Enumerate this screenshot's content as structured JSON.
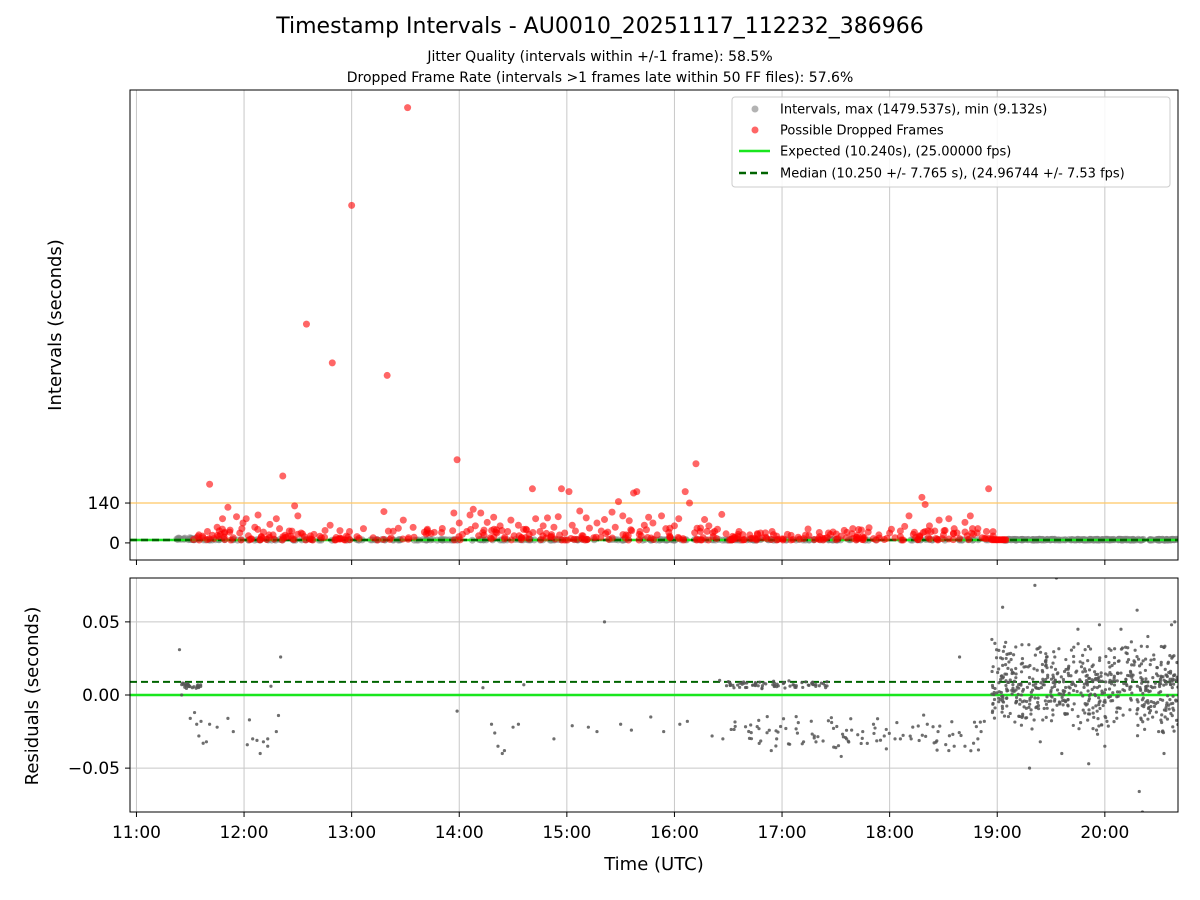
{
  "title": "Timestamp Intervals - AU0010_20251117_112232_386966",
  "subtitle_1": "Jitter Quality (intervals within +/-1 frame): 58.5%",
  "subtitle_2": "Dropped Frame Rate (intervals >1 frames late within 50 FF files): 57.6%",
  "colors": {
    "expected": "#19e61e",
    "median": "#006400",
    "dropped": "#ff0000",
    "intervals": "#808080",
    "threshold": "#ffc864",
    "residual": "#555555",
    "grid": "#c8c8c8"
  },
  "chart_data": [
    {
      "type": "scatter",
      "panel": "top",
      "ylabel": "Intervals (seconds)",
      "x_axis": "Time (UTC), hours",
      "xlim": [
        10.94,
        20.68
      ],
      "ylim": [
        -60,
        1590
      ],
      "yticks": [
        0,
        140
      ],
      "ytick_labels": [
        "0",
        "140"
      ],
      "xticks": [
        11,
        12,
        13,
        14,
        15,
        16,
        17,
        18,
        19,
        20
      ],
      "grid": "x",
      "threshold_line": 140,
      "expected": 10.24,
      "median": 10.25,
      "legend_position": "top-right",
      "legend": [
        "Intervals, max (1479.537s), min (9.132s)",
        "Possible Dropped Frames",
        "Expected (10.240s), (25.00000 fps)",
        "Median (10.250 +/- 7.765 s), (24.96744 +/- 7.53 fps)"
      ],
      "dropped_frames": [
        [
          11.53,
          12
        ],
        [
          11.58,
          28
        ],
        [
          11.62,
          18
        ],
        [
          11.66,
          40
        ],
        [
          11.68,
          206
        ],
        [
          11.72,
          15
        ],
        [
          11.75,
          55
        ],
        [
          11.78,
          30
        ],
        [
          11.8,
          85
        ],
        [
          11.82,
          12
        ],
        [
          11.85,
          125
        ],
        [
          11.87,
          45
        ],
        [
          11.9,
          18
        ],
        [
          11.93,
          92
        ],
        [
          11.96,
          35
        ],
        [
          11.99,
          70
        ],
        [
          12.02,
          85
        ],
        [
          12.04,
          25
        ],
        [
          12.07,
          14
        ],
        [
          12.1,
          55
        ],
        [
          12.13,
          98
        ],
        [
          12.16,
          20
        ],
        [
          12.18,
          38
        ],
        [
          12.21,
          12
        ],
        [
          12.24,
          65
        ],
        [
          12.27,
          28
        ],
        [
          12.3,
          85
        ],
        [
          12.33,
          50
        ],
        [
          12.36,
          235
        ],
        [
          12.39,
          20
        ],
        [
          12.42,
          42
        ],
        [
          12.45,
          15
        ],
        [
          12.47,
          130
        ],
        [
          12.5,
          95
        ],
        [
          12.53,
          35
        ],
        [
          12.56,
          22
        ],
        [
          12.58,
          768
        ],
        [
          12.62,
          12
        ],
        [
          12.65,
          30
        ],
        [
          12.72,
          18
        ],
        [
          12.8,
          62
        ],
        [
          12.82,
          632
        ],
        [
          12.9,
          15
        ],
        [
          12.98,
          40
        ],
        [
          13.0,
          1185
        ],
        [
          13.05,
          22
        ],
        [
          13.2,
          18
        ],
        [
          13.3,
          110
        ],
        [
          13.33,
          588
        ],
        [
          13.48,
          80
        ],
        [
          13.52,
          1528
        ],
        [
          13.58,
          20
        ],
        [
          13.95,
          105
        ],
        [
          13.98,
          292
        ],
        [
          14.0,
          70
        ],
        [
          14.03,
          30
        ],
        [
          14.07,
          40
        ],
        [
          14.1,
          98
        ],
        [
          14.13,
          118
        ],
        [
          14.15,
          60
        ],
        [
          14.18,
          25
        ],
        [
          14.2,
          105
        ],
        [
          14.23,
          45
        ],
        [
          14.26,
          72
        ],
        [
          14.29,
          18
        ],
        [
          14.32,
          90
        ],
        [
          14.35,
          35
        ],
        [
          14.38,
          60
        ],
        [
          14.42,
          14
        ],
        [
          14.45,
          40
        ],
        [
          14.48,
          80
        ],
        [
          14.51,
          25
        ],
        [
          14.55,
          62
        ],
        [
          14.58,
          18
        ],
        [
          14.62,
          48
        ],
        [
          14.65,
          30
        ],
        [
          14.68,
          190
        ],
        [
          14.71,
          85
        ],
        [
          14.75,
          40
        ],
        [
          14.78,
          60
        ],
        [
          14.82,
          88
        ],
        [
          14.85,
          20
        ],
        [
          14.88,
          55
        ],
        [
          14.92,
          92
        ],
        [
          14.95,
          190
        ],
        [
          14.98,
          35
        ],
        [
          15.02,
          180
        ],
        [
          15.05,
          62
        ],
        [
          15.08,
          42
        ],
        [
          15.12,
          112
        ],
        [
          15.15,
          25
        ],
        [
          15.18,
          88
        ],
        [
          15.21,
          52
        ],
        [
          15.25,
          18
        ],
        [
          15.28,
          70
        ],
        [
          15.32,
          42
        ],
        [
          15.35,
          82
        ],
        [
          15.38,
          38
        ],
        [
          15.42,
          108
        ],
        [
          15.45,
          55
        ],
        [
          15.48,
          145
        ],
        [
          15.52,
          95
        ],
        [
          15.55,
          28
        ],
        [
          15.58,
          78
        ],
        [
          15.62,
          175
        ],
        [
          15.65,
          180
        ],
        [
          15.68,
          40
        ],
        [
          15.72,
          62
        ],
        [
          15.76,
          90
        ],
        [
          15.8,
          70
        ],
        [
          15.84,
          28
        ],
        [
          15.88,
          95
        ],
        [
          15.92,
          50
        ],
        [
          15.96,
          20
        ],
        [
          16.0,
          60
        ],
        [
          16.04,
          85
        ],
        [
          16.08,
          15
        ],
        [
          16.1,
          180
        ],
        [
          16.14,
          140
        ],
        [
          16.2,
          278
        ],
        [
          16.24,
          40
        ],
        [
          16.28,
          82
        ],
        [
          16.32,
          60
        ],
        [
          16.36,
          22
        ],
        [
          16.4,
          48
        ],
        [
          16.44,
          100
        ],
        [
          16.48,
          32
        ],
        [
          16.55,
          18
        ],
        [
          16.6,
          40
        ],
        [
          16.65,
          12
        ],
        [
          16.7,
          28
        ],
        [
          16.75,
          15
        ],
        [
          16.8,
          35
        ],
        [
          16.85,
          20
        ],
        [
          16.9,
          12
        ],
        [
          16.95,
          24
        ],
        [
          17.0,
          14
        ],
        [
          17.05,
          30
        ],
        [
          17.1,
          12
        ],
        [
          17.15,
          20
        ],
        [
          17.2,
          15
        ],
        [
          17.25,
          26
        ],
        [
          17.3,
          12
        ],
        [
          17.35,
          22
        ],
        [
          17.4,
          16
        ],
        [
          17.45,
          30
        ],
        [
          17.5,
          12
        ],
        [
          17.55,
          24
        ],
        [
          17.6,
          18
        ],
        [
          17.65,
          32
        ],
        [
          17.7,
          14
        ],
        [
          17.75,
          22
        ],
        [
          17.8,
          38
        ],
        [
          17.85,
          15
        ],
        [
          17.9,
          28
        ],
        [
          17.95,
          12
        ],
        [
          18.0,
          35
        ],
        [
          18.05,
          18
        ],
        [
          18.1,
          42
        ],
        [
          18.14,
          58
        ],
        [
          18.18,
          95
        ],
        [
          18.22,
          30
        ],
        [
          18.26,
          12
        ],
        [
          18.3,
          160
        ],
        [
          18.33,
          135
        ],
        [
          18.37,
          60
        ],
        [
          18.42,
          42
        ],
        [
          18.46,
          80
        ],
        [
          18.5,
          28
        ],
        [
          18.55,
          85
        ],
        [
          18.6,
          50
        ],
        [
          18.65,
          15
        ],
        [
          18.7,
          72
        ],
        [
          18.75,
          95
        ],
        [
          18.78,
          30
        ],
        [
          18.82,
          50
        ],
        [
          18.86,
          18
        ],
        [
          18.9,
          40
        ],
        [
          18.92,
          190
        ],
        [
          18.95,
          15
        ]
      ],
      "dropped_frame_band": {
        "x_start": 11.55,
        "x_end": 19.0,
        "y_min": 10,
        "y_max": 55,
        "n": 260
      },
      "dropped_frame_tail": {
        "x_start": 18.95,
        "x_end": 19.08,
        "y": 11,
        "n": 10
      },
      "intervals_band": [
        {
          "x_start": 11.35,
          "x_end": 11.58,
          "y_min": 9.5,
          "y_max": 18,
          "n": 22
        },
        {
          "x_start": 11.58,
          "x_end": 18.95,
          "y_min": 9.5,
          "y_max": 12,
          "n": 240
        },
        {
          "x_start": 19.05,
          "x_end": 20.68,
          "y_min": 9.5,
          "y_max": 13,
          "n": 220
        }
      ]
    },
    {
      "type": "scatter",
      "panel": "bottom",
      "ylabel": "Residuals (seconds)",
      "xlabel": "Time (UTC)",
      "xlim": [
        10.94,
        20.68
      ],
      "ylim": [
        -0.08,
        0.08
      ],
      "yticks": [
        -0.05,
        0.0,
        0.05
      ],
      "ytick_labels": [
        "−0.05",
        "0.00",
        "0.05"
      ],
      "xticks": [
        11,
        12,
        13,
        14,
        15,
        16,
        17,
        18,
        19,
        20
      ],
      "xtick_labels": [
        "11:00",
        "12:00",
        "13:00",
        "14:00",
        "15:00",
        "16:00",
        "17:00",
        "18:00",
        "19:00",
        "20:00"
      ],
      "grid": "both",
      "expected_residual": 0.0,
      "median_residual": 0.009,
      "residuals": [
        [
          11.4,
          0.031
        ],
        [
          11.42,
          0.0
        ],
        [
          11.44,
          0.008
        ],
        [
          11.46,
          0.007
        ],
        [
          11.5,
          -0.016
        ],
        [
          11.52,
          0.005
        ],
        [
          11.54,
          -0.012
        ],
        [
          11.56,
          -0.02
        ],
        [
          11.58,
          -0.028
        ],
        [
          11.6,
          -0.018
        ],
        [
          11.62,
          -0.033
        ],
        [
          11.65,
          -0.032
        ],
        [
          11.68,
          -0.02
        ],
        [
          11.75,
          -0.022
        ],
        [
          11.85,
          -0.016
        ],
        [
          11.9,
          -0.025
        ],
        [
          12.03,
          -0.034
        ],
        [
          12.05,
          -0.017
        ],
        [
          12.08,
          -0.03
        ],
        [
          12.12,
          -0.031
        ],
        [
          12.15,
          -0.04
        ],
        [
          12.18,
          -0.032
        ],
        [
          12.22,
          -0.03
        ],
        [
          12.25,
          0.006
        ],
        [
          12.3,
          -0.025
        ],
        [
          12.32,
          -0.014
        ],
        [
          12.34,
          0.026
        ],
        [
          12.22,
          -0.035
        ],
        [
          13.98,
          -0.011
        ],
        [
          14.22,
          0.005
        ],
        [
          14.3,
          -0.02
        ],
        [
          14.33,
          -0.026
        ],
        [
          14.36,
          -0.035
        ],
        [
          14.4,
          -0.04
        ],
        [
          14.42,
          -0.038
        ],
        [
          14.5,
          -0.022
        ],
        [
          14.55,
          -0.02
        ],
        [
          14.6,
          0.007
        ],
        [
          14.88,
          -0.03
        ],
        [
          15.05,
          -0.021
        ],
        [
          15.2,
          -0.022
        ],
        [
          15.28,
          -0.025
        ],
        [
          15.35,
          0.05
        ],
        [
          15.5,
          -0.02
        ],
        [
          15.6,
          -0.024
        ],
        [
          15.78,
          -0.015
        ],
        [
          15.9,
          -0.025
        ],
        [
          16.05,
          -0.02
        ],
        [
          16.12,
          -0.018
        ],
        [
          16.35,
          -0.028
        ],
        [
          16.42,
          0.01
        ],
        [
          16.45,
          -0.03
        ],
        [
          16.9,
          -0.038
        ],
        [
          16.95,
          -0.03
        ],
        [
          17.2,
          -0.032
        ],
        [
          17.3,
          -0.028
        ],
        [
          17.5,
          -0.036
        ],
        [
          17.55,
          -0.042
        ],
        [
          17.6,
          -0.03
        ],
        [
          17.75,
          -0.025
        ],
        [
          17.85,
          -0.02
        ],
        [
          17.95,
          -0.028
        ],
        [
          18.05,
          -0.03
        ],
        [
          18.1,
          -0.03
        ],
        [
          18.2,
          -0.03
        ],
        [
          18.35,
          -0.02
        ],
        [
          18.45,
          -0.025
        ],
        [
          18.55,
          -0.038
        ],
        [
          18.6,
          -0.035
        ],
        [
          18.7,
          -0.035
        ],
        [
          18.78,
          -0.033
        ],
        [
          18.82,
          -0.03
        ],
        [
          18.85,
          -0.025
        ],
        [
          18.88,
          -0.018
        ],
        [
          18.65,
          0.026
        ],
        [
          18.95,
          0.038
        ],
        [
          19.05,
          0.06
        ],
        [
          19.35,
          0.075
        ],
        [
          19.4,
          -0.032
        ],
        [
          19.3,
          -0.05
        ],
        [
          19.55,
          0.08
        ],
        [
          19.6,
          -0.04
        ],
        [
          19.75,
          0.045
        ],
        [
          19.85,
          -0.047
        ],
        [
          19.95,
          0.048
        ],
        [
          20.0,
          -0.035
        ],
        [
          20.15,
          0.045
        ],
        [
          20.3,
          0.058
        ],
        [
          20.32,
          -0.066
        ],
        [
          20.35,
          -0.08
        ],
        [
          20.4,
          0.04
        ],
        [
          20.55,
          -0.04
        ],
        [
          20.62,
          0.048
        ],
        [
          20.65,
          0.05
        ],
        [
          20.5,
          -0.025
        ]
      ],
      "residual_clusters": [
        {
          "x_start": 11.42,
          "x_end": 11.6,
          "y_min": 0.004,
          "y_max": 0.009,
          "n": 25
        },
        {
          "x_start": 16.48,
          "x_end": 17.45,
          "y_min": 0.004,
          "y_max": 0.01,
          "n": 70
        },
        {
          "x_start": 16.5,
          "x_end": 18.85,
          "y_min": -0.04,
          "y_max": -0.012,
          "n": 90
        },
        {
          "x_start": 18.95,
          "x_end": 20.68,
          "y_min": -0.03,
          "y_max": 0.04,
          "n": 620
        }
      ]
    }
  ]
}
